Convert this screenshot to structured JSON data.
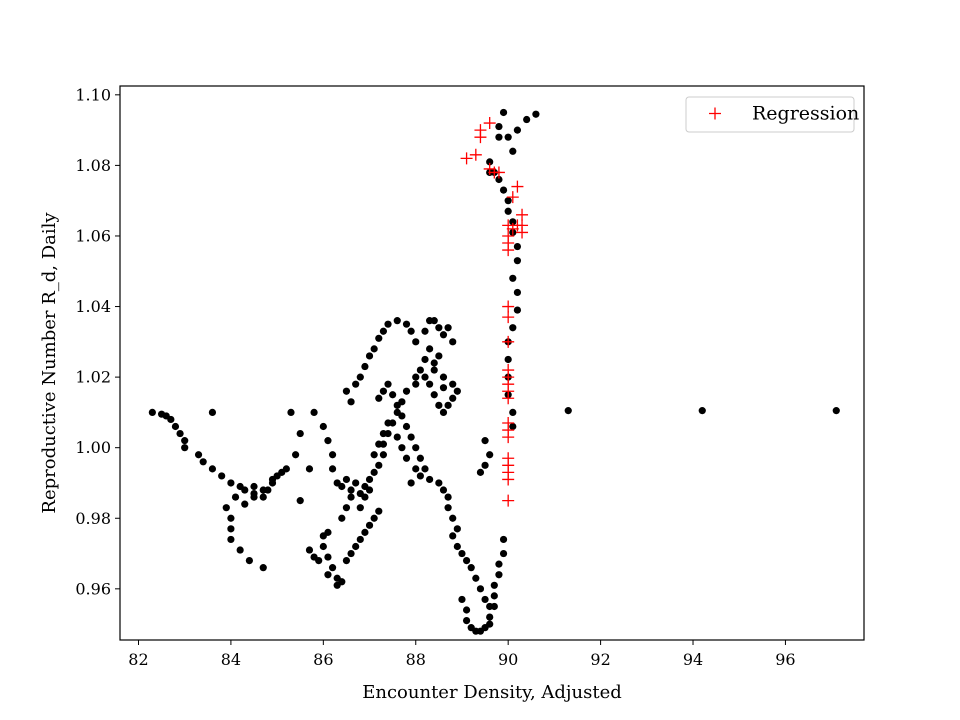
{
  "chart_data": {
    "type": "scatter",
    "title": "",
    "xlabel": "Encounter Density, Adjusted",
    "ylabel": "Reproductive Number R_d, Daily",
    "xlim": [
      81.6,
      97.7
    ],
    "ylim": [
      0.9455,
      1.1025
    ],
    "xticks": [
      82,
      84,
      86,
      88,
      90,
      92,
      94,
      96
    ],
    "yticks": [
      0.96,
      0.98,
      1.0,
      1.02,
      1.04,
      1.06,
      1.08,
      1.1
    ],
    "ytick_labels": [
      "0.96",
      "0.98",
      "1.00",
      "1.02",
      "1.04",
      "1.06",
      "1.08",
      "1.10"
    ],
    "grid": false,
    "legend": {
      "position": "top-right"
    },
    "series": [
      {
        "marker": "dot",
        "color": "#000000",
        "points": [
          [
            82.3,
            1.01
          ],
          [
            82.5,
            1.0095
          ],
          [
            82.6,
            1.009
          ],
          [
            82.7,
            1.008
          ],
          [
            82.8,
            1.006
          ],
          [
            82.9,
            1.004
          ],
          [
            83.0,
            1.002
          ],
          [
            83.0,
            1.0
          ],
          [
            83.3,
            0.998
          ],
          [
            83.4,
            0.996
          ],
          [
            83.6,
            0.994
          ],
          [
            83.8,
            0.992
          ],
          [
            84.0,
            0.99
          ],
          [
            84.2,
            0.989
          ],
          [
            84.3,
            0.988
          ],
          [
            84.5,
            0.987
          ],
          [
            84.7,
            0.986
          ],
          [
            84.8,
            0.988
          ],
          [
            84.9,
            0.99
          ],
          [
            85.0,
            0.992
          ],
          [
            85.1,
            0.993
          ],
          [
            85.2,
            0.994
          ],
          [
            83.6,
            1.01
          ],
          [
            83.9,
            0.983
          ],
          [
            84.0,
            0.98
          ],
          [
            84.0,
            0.977
          ],
          [
            84.0,
            0.974
          ],
          [
            84.2,
            0.971
          ],
          [
            84.4,
            0.968
          ],
          [
            84.7,
            0.966
          ],
          [
            84.1,
            0.986
          ],
          [
            84.3,
            0.984
          ],
          [
            84.5,
            0.986
          ],
          [
            84.7,
            0.988
          ],
          [
            84.9,
            0.991
          ],
          [
            84.5,
            0.989
          ],
          [
            85.3,
            1.01
          ],
          [
            85.5,
            1.004
          ],
          [
            85.4,
            0.998
          ],
          [
            85.7,
            0.994
          ],
          [
            85.5,
            0.985
          ],
          [
            85.8,
            1.01
          ],
          [
            86.0,
            1.006
          ],
          [
            86.1,
            1.002
          ],
          [
            86.2,
            0.998
          ],
          [
            86.2,
            0.994
          ],
          [
            86.3,
            0.99
          ],
          [
            86.4,
            0.989
          ],
          [
            86.6,
            0.988
          ],
          [
            86.8,
            0.987
          ],
          [
            86.5,
            0.991
          ],
          [
            86.7,
            0.99
          ],
          [
            86.9,
            0.989
          ],
          [
            86.6,
            1.013
          ],
          [
            86.5,
            1.016
          ],
          [
            86.7,
            1.018
          ],
          [
            86.8,
            1.02
          ],
          [
            86.9,
            1.023
          ],
          [
            87.0,
            1.026
          ],
          [
            87.1,
            1.028
          ],
          [
            87.2,
            1.031
          ],
          [
            87.3,
            1.033
          ],
          [
            87.4,
            1.035
          ],
          [
            87.6,
            1.036
          ],
          [
            87.8,
            1.035
          ],
          [
            87.9,
            1.033
          ],
          [
            88.0,
            1.03
          ],
          [
            86.1,
            0.976
          ],
          [
            86.0,
            0.975
          ],
          [
            86.0,
            0.972
          ],
          [
            86.1,
            0.969
          ],
          [
            86.2,
            0.966
          ],
          [
            86.3,
            0.963
          ],
          [
            86.4,
            0.962
          ],
          [
            86.3,
            0.961
          ],
          [
            85.7,
            0.971
          ],
          [
            85.8,
            0.969
          ],
          [
            85.9,
            0.968
          ],
          [
            86.1,
            0.964
          ],
          [
            86.5,
            0.968
          ],
          [
            86.6,
            0.97
          ],
          [
            86.7,
            0.972
          ],
          [
            86.8,
            0.974
          ],
          [
            86.9,
            0.976
          ],
          [
            87.0,
            0.978
          ],
          [
            87.1,
            0.98
          ],
          [
            87.2,
            0.982
          ],
          [
            86.8,
            0.983
          ],
          [
            86.9,
            0.986
          ],
          [
            87.0,
            0.988
          ],
          [
            86.4,
            0.98
          ],
          [
            86.5,
            0.983
          ],
          [
            86.6,
            0.986
          ],
          [
            87.0,
            0.991
          ],
          [
            87.1,
            0.993
          ],
          [
            87.2,
            0.995
          ],
          [
            87.3,
            0.998
          ],
          [
            87.3,
            1.001
          ],
          [
            87.4,
            1.004
          ],
          [
            87.5,
            1.007
          ],
          [
            87.6,
            1.01
          ],
          [
            87.7,
            1.013
          ],
          [
            87.8,
            1.016
          ],
          [
            88.0,
            1.018
          ],
          [
            88.2,
            1.02
          ],
          [
            88.4,
            1.022
          ],
          [
            88.6,
            1.02
          ],
          [
            88.8,
            1.018
          ],
          [
            88.9,
            1.016
          ],
          [
            87.2,
            1.014
          ],
          [
            87.3,
            1.016
          ],
          [
            87.4,
            1.018
          ],
          [
            87.5,
            1.015
          ],
          [
            87.6,
            1.012
          ],
          [
            87.7,
            1.009
          ],
          [
            87.8,
            1.006
          ],
          [
            87.9,
            1.003
          ],
          [
            88.0,
            1.0
          ],
          [
            88.1,
            0.997
          ],
          [
            88.2,
            0.994
          ],
          [
            88.3,
            0.991
          ],
          [
            88.5,
            0.99
          ],
          [
            88.6,
            0.988
          ],
          [
            88.7,
            0.986
          ],
          [
            88.7,
            0.983
          ],
          [
            88.8,
            0.98
          ],
          [
            88.9,
            0.977
          ],
          [
            88.8,
            0.975
          ],
          [
            88.9,
            0.972
          ],
          [
            89.0,
            0.97
          ],
          [
            89.1,
            0.968
          ],
          [
            89.2,
            0.966
          ],
          [
            89.3,
            0.963
          ],
          [
            89.4,
            0.96
          ],
          [
            89.5,
            0.957
          ],
          [
            89.6,
            0.955
          ],
          [
            89.6,
            0.952
          ],
          [
            89.6,
            0.95
          ],
          [
            89.5,
            0.949
          ],
          [
            89.4,
            0.948
          ],
          [
            89.3,
            0.948
          ],
          [
            89.2,
            0.949
          ],
          [
            89.1,
            0.951
          ],
          [
            89.1,
            0.954
          ],
          [
            89.0,
            0.957
          ],
          [
            89.7,
            0.955
          ],
          [
            89.7,
            0.958
          ],
          [
            89.7,
            0.961
          ],
          [
            89.8,
            0.964
          ],
          [
            89.8,
            0.967
          ],
          [
            89.9,
            0.97
          ],
          [
            89.9,
            0.974
          ],
          [
            87.1,
            0.998
          ],
          [
            87.2,
            1.001
          ],
          [
            87.3,
            1.004
          ],
          [
            87.4,
            1.007
          ],
          [
            87.6,
            1.003
          ],
          [
            87.7,
            1.0
          ],
          [
            87.8,
            0.997
          ],
          [
            88.0,
            0.994
          ],
          [
            88.1,
            0.992
          ],
          [
            87.9,
            0.99
          ],
          [
            88.2,
            1.033
          ],
          [
            88.3,
            1.036
          ],
          [
            88.4,
            1.036
          ],
          [
            88.5,
            1.034
          ],
          [
            88.6,
            1.032
          ],
          [
            88.7,
            1.034
          ],
          [
            88.8,
            1.03
          ],
          [
            88.2,
            1.025
          ],
          [
            88.3,
            1.028
          ],
          [
            88.4,
            1.024
          ],
          [
            88.5,
            1.026
          ],
          [
            88.1,
            1.022
          ],
          [
            88.0,
            1.02
          ],
          [
            88.3,
            1.018
          ],
          [
            88.4,
            1.015
          ],
          [
            88.5,
            1.012
          ],
          [
            88.6,
            1.01
          ],
          [
            88.7,
            1.012
          ],
          [
            88.8,
            1.014
          ],
          [
            88.6,
            1.017
          ],
          [
            89.5,
            1.002
          ],
          [
            89.6,
            0.998
          ],
          [
            89.5,
            0.995
          ],
          [
            89.4,
            0.993
          ],
          [
            89.9,
            1.095
          ],
          [
            90.0,
            1.088
          ],
          [
            90.1,
            1.084
          ],
          [
            90.2,
            1.09
          ],
          [
            90.4,
            1.093
          ],
          [
            90.6,
            1.0945
          ],
          [
            89.6,
            1.078
          ],
          [
            89.6,
            1.081
          ],
          [
            89.7,
            1.078
          ],
          [
            89.8,
            1.076
          ],
          [
            89.9,
            1.073
          ],
          [
            90.0,
            1.07
          ],
          [
            90.0,
            1.067
          ],
          [
            90.1,
            1.064
          ],
          [
            90.1,
            1.061
          ],
          [
            90.2,
            1.057
          ],
          [
            90.2,
            1.053
          ],
          [
            90.1,
            1.048
          ],
          [
            90.2,
            1.044
          ],
          [
            90.2,
            1.039
          ],
          [
            90.1,
            1.034
          ],
          [
            90.0,
            1.03
          ],
          [
            90.0,
            1.025
          ],
          [
            90.0,
            1.02
          ],
          [
            90.0,
            1.015
          ],
          [
            90.1,
            1.01
          ],
          [
            90.1,
            1.006
          ],
          [
            89.8,
            1.091
          ],
          [
            89.8,
            1.088
          ],
          [
            91.3,
            1.0105
          ],
          [
            94.2,
            1.0105
          ],
          [
            97.1,
            1.0105
          ]
        ]
      },
      {
        "name": "Regression",
        "marker": "plus",
        "color": "#ff0000",
        "points": [
          [
            89.1,
            1.082
          ],
          [
            89.3,
            1.083
          ],
          [
            89.4,
            1.088
          ],
          [
            89.4,
            1.09
          ],
          [
            89.6,
            1.092
          ],
          [
            89.7,
            1.078
          ],
          [
            89.8,
            1.078
          ],
          [
            89.6,
            1.079
          ],
          [
            90.1,
            1.071
          ],
          [
            90.2,
            1.074
          ],
          [
            90.3,
            1.066
          ],
          [
            90.3,
            1.063
          ],
          [
            90.3,
            1.061
          ],
          [
            90.2,
            1.063
          ],
          [
            90.1,
            1.062
          ],
          [
            90.0,
            1.063
          ],
          [
            90.0,
            1.06
          ],
          [
            90.0,
            1.058
          ],
          [
            90.0,
            1.056
          ],
          [
            90.0,
            1.04
          ],
          [
            90.0,
            1.037
          ],
          [
            90.0,
            1.03
          ],
          [
            90.0,
            1.022
          ],
          [
            90.0,
            1.02
          ],
          [
            90.0,
            1.018
          ],
          [
            90.0,
            1.016
          ],
          [
            90.0,
            1.014
          ],
          [
            90.0,
            1.007
          ],
          [
            90.0,
            1.005
          ],
          [
            90.0,
            1.003
          ],
          [
            90.0,
            0.997
          ],
          [
            90.0,
            0.995
          ],
          [
            90.0,
            0.993
          ],
          [
            90.0,
            0.991
          ],
          [
            90.0,
            0.985
          ]
        ]
      }
    ]
  }
}
